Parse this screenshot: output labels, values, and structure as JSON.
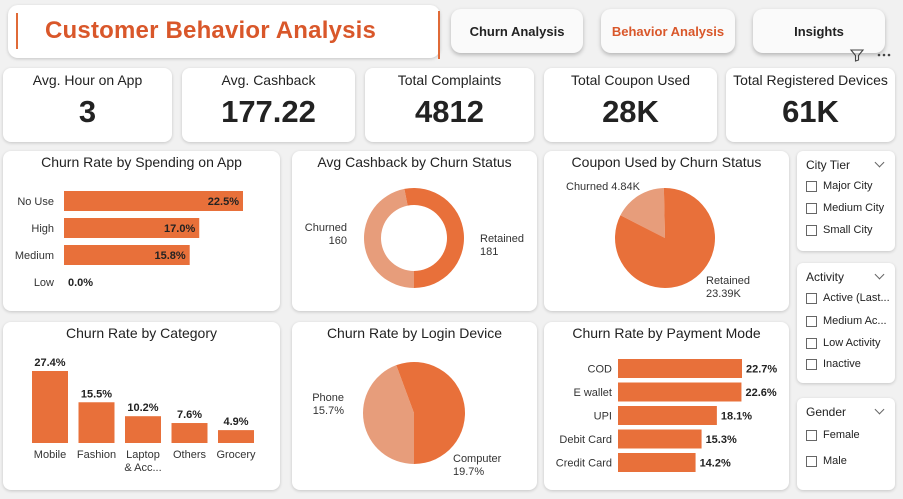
{
  "header": {
    "title": "Customer Behavior Analysis"
  },
  "nav": {
    "churn": "Churn Analysis",
    "behavior": "Behavior Analysis",
    "insights": "Insights"
  },
  "kpis": [
    {
      "label": "Avg. Hour on App",
      "value": "3"
    },
    {
      "label": "Avg. Cashback",
      "value": "177.22"
    },
    {
      "label": "Total Complaints",
      "value": "4812"
    },
    {
      "label": "Total Coupon Used",
      "value": "28K"
    },
    {
      "label": "Total Registered Devices",
      "value": "61K"
    }
  ],
  "colors": {
    "accent": "#e8703a",
    "accent_light": "#e79d7b",
    "title": "#d9572a"
  },
  "charts": {
    "spending": {
      "title": "Churn Rate by Spending on App"
    },
    "cashback": {
      "title": "Avg Cashback by Churn Status"
    },
    "coupon": {
      "title": "Coupon Used by Churn Status"
    },
    "category": {
      "title": "Churn Rate by Category"
    },
    "login": {
      "title": "Churn Rate by Login Device"
    },
    "payment": {
      "title": "Churn Rate by Payment Mode"
    }
  },
  "chart_data": [
    {
      "type": "bar",
      "orientation": "horizontal",
      "title": "Churn Rate by Spending on App",
      "categories": [
        "No Use",
        "High",
        "Medium",
        "Low"
      ],
      "values": [
        22.5,
        17.0,
        15.8,
        0.0
      ],
      "labels": [
        "22.5%",
        "17.0%",
        "15.8%",
        "0.0%"
      ]
    },
    {
      "type": "pie",
      "variant": "donut",
      "title": "Avg Cashback by Churn Status",
      "categories": [
        "Churned",
        "Retained"
      ],
      "values": [
        160,
        181
      ],
      "labels": [
        "160",
        "181"
      ]
    },
    {
      "type": "pie",
      "title": "Coupon Used by Churn Status",
      "categories": [
        "Churned",
        "Retained"
      ],
      "values": [
        4.84,
        23.39
      ],
      "labels": [
        "4.84K",
        "23.39K"
      ]
    },
    {
      "type": "bar",
      "orientation": "vertical",
      "title": "Churn Rate by Category",
      "categories": [
        "Mobile",
        "Fashion",
        "Laptop & Acc...",
        "Others",
        "Grocery"
      ],
      "values": [
        27.4,
        15.5,
        10.2,
        7.6,
        4.9
      ],
      "labels": [
        "27.4%",
        "15.5%",
        "10.2%",
        "7.6%",
        "4.9%"
      ]
    },
    {
      "type": "pie",
      "title": "Churn Rate by Login Device",
      "categories": [
        "Phone",
        "Computer"
      ],
      "values": [
        15.7,
        19.7
      ],
      "labels": [
        "15.7%",
        "19.7%"
      ]
    },
    {
      "type": "bar",
      "orientation": "horizontal",
      "title": "Churn Rate by Payment Mode",
      "categories": [
        "COD",
        "E wallet",
        "UPI",
        "Debit Card",
        "Credit Card"
      ],
      "values": [
        22.7,
        22.6,
        18.1,
        15.3,
        14.2
      ],
      "labels": [
        "22.7%",
        "22.6%",
        "18.1%",
        "15.3%",
        "14.2%"
      ]
    }
  ],
  "slicers": [
    {
      "title": "City Tier",
      "items": [
        "Major City",
        "Medium City",
        "Small City"
      ]
    },
    {
      "title": "Activity",
      "items": [
        "Active (Last...",
        "Medium Ac...",
        "Low Activity",
        "Inactive"
      ]
    },
    {
      "title": "Gender",
      "items": [
        "Female",
        "Male"
      ]
    }
  ]
}
